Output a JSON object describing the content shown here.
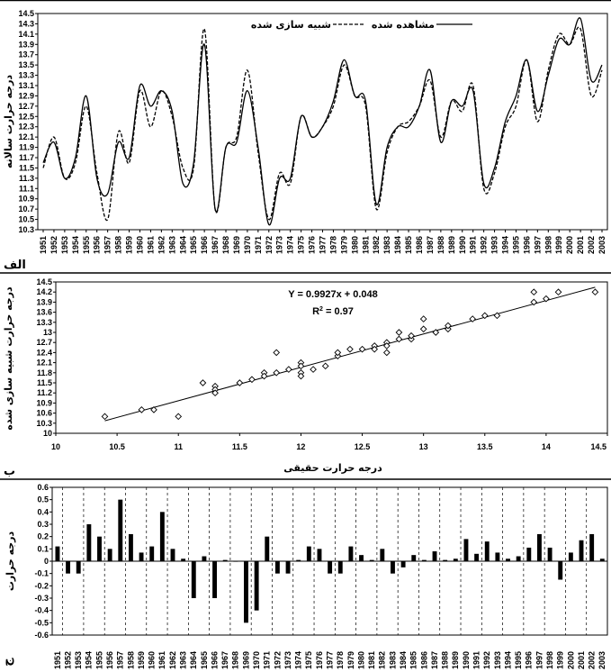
{
  "chart_data": [
    {
      "type": "line",
      "panel_label": "الف",
      "ylabel": "درجه حرارت سالانه",
      "legend": {
        "observed": "مشاهده شده",
        "simulated": "شبیه سازی شده",
        "position": "top-center"
      },
      "ylim": [
        10.3,
        14.5
      ],
      "yticks": [
        10.3,
        10.5,
        10.7,
        10.9,
        11.1,
        11.3,
        11.5,
        11.7,
        11.9,
        12.1,
        12.3,
        12.5,
        12.7,
        12.9,
        13.1,
        13.3,
        13.5,
        13.7,
        13.9,
        14.1,
        14.3,
        14.5
      ],
      "x": [
        1951,
        1952,
        1953,
        1954,
        1955,
        1956,
        1957,
        1958,
        1959,
        1960,
        1961,
        1962,
        1963,
        1964,
        1965,
        1966,
        1967,
        1968,
        1969,
        1970,
        1971,
        1972,
        1973,
        1974,
        1975,
        1976,
        1977,
        1978,
        1979,
        1980,
        1981,
        1982,
        1983,
        1984,
        1985,
        1986,
        1987,
        1988,
        1989,
        1990,
        1991,
        1992,
        1993,
        1994,
        1995,
        1996,
        1997,
        1998,
        1999,
        2000,
        2001,
        2002,
        2003
      ],
      "series": [
        {
          "name": "مشاهده شده",
          "style": "solid",
          "values": [
            11.6,
            12.0,
            11.3,
            11.7,
            12.9,
            11.3,
            11.0,
            12.0,
            11.7,
            13.1,
            12.7,
            13.0,
            12.6,
            11.2,
            11.6,
            13.9,
            10.7,
            11.9,
            12.0,
            13.0,
            11.9,
            10.4,
            11.3,
            11.3,
            12.5,
            12.1,
            12.3,
            12.8,
            13.6,
            12.9,
            12.8,
            10.8,
            11.9,
            12.3,
            12.3,
            12.7,
            13.4,
            12.0,
            12.8,
            12.7,
            13.0,
            11.2,
            11.5,
            12.4,
            12.9,
            13.6,
            12.6,
            13.3,
            14.0,
            13.9,
            14.4,
            13.2,
            13.5
          ]
        },
        {
          "name": "شبیه سازی شده",
          "style": "dashed",
          "values": [
            11.5,
            12.1,
            11.3,
            11.6,
            12.7,
            11.4,
            10.5,
            12.2,
            11.6,
            13.0,
            12.3,
            13.0,
            12.5,
            11.5,
            11.5,
            14.2,
            10.7,
            11.9,
            12.1,
            13.4,
            11.8,
            10.5,
            11.4,
            11.2,
            12.5,
            12.1,
            12.3,
            12.7,
            13.5,
            12.9,
            12.7,
            10.7,
            11.8,
            12.3,
            12.4,
            12.7,
            13.2,
            12.1,
            12.8,
            12.6,
            13.1,
            11.1,
            11.4,
            12.3,
            12.7,
            13.6,
            12.4,
            13.4,
            14.1,
            13.9,
            14.2,
            12.9,
            13.4
          ]
        }
      ]
    },
    {
      "type": "scatter",
      "panel_label": "ب",
      "xlabel": "درجه حرارت حقیقی",
      "ylabel": "درجه حرارت شبیه سازی شده",
      "xlim": [
        10,
        14.5
      ],
      "xticks": [
        10,
        10.5,
        11,
        11.5,
        12,
        12.5,
        13,
        13.5,
        14,
        14.5
      ],
      "ylim": [
        10,
        14.5
      ],
      "yticks": [
        10,
        10.3,
        10.6,
        10.9,
        11.2,
        11.5,
        11.8,
        12.1,
        12.4,
        12.7,
        13,
        13.3,
        13.6,
        13.9,
        14.2,
        14.5
      ],
      "points": [
        [
          10.4,
          10.5
        ],
        [
          10.7,
          10.7
        ],
        [
          10.8,
          10.7
        ],
        [
          11.0,
          10.5
        ],
        [
          11.2,
          11.5
        ],
        [
          11.3,
          11.4
        ],
        [
          11.3,
          11.3
        ],
        [
          11.3,
          11.2
        ],
        [
          11.5,
          11.5
        ],
        [
          11.6,
          11.6
        ],
        [
          11.7,
          11.8
        ],
        [
          11.7,
          11.7
        ],
        [
          11.8,
          12.4
        ],
        [
          11.8,
          11.8
        ],
        [
          11.9,
          11.9
        ],
        [
          12.0,
          12.1
        ],
        [
          12.0,
          12.0
        ],
        [
          12.0,
          11.8
        ],
        [
          12.0,
          11.7
        ],
        [
          12.1,
          11.9
        ],
        [
          12.2,
          12.0
        ],
        [
          12.3,
          12.3
        ],
        [
          12.3,
          12.4
        ],
        [
          12.4,
          12.5
        ],
        [
          12.5,
          12.5
        ],
        [
          12.6,
          12.6
        ],
        [
          12.6,
          12.5
        ],
        [
          12.7,
          12.7
        ],
        [
          12.7,
          12.6
        ],
        [
          12.7,
          12.4
        ],
        [
          12.8,
          12.8
        ],
        [
          12.8,
          13.0
        ],
        [
          12.9,
          12.8
        ],
        [
          12.9,
          12.9
        ],
        [
          13.0,
          13.1
        ],
        [
          13.0,
          13.4
        ],
        [
          13.1,
          13.0
        ],
        [
          13.2,
          13.1
        ],
        [
          13.2,
          13.2
        ],
        [
          13.4,
          13.4
        ],
        [
          13.5,
          13.5
        ],
        [
          13.6,
          13.5
        ],
        [
          13.9,
          13.9
        ],
        [
          13.9,
          14.2
        ],
        [
          14.0,
          14.0
        ],
        [
          14.1,
          14.2
        ],
        [
          14.4,
          14.2
        ]
      ],
      "trendline": {
        "slope": 0.9927,
        "intercept": 0.048
      },
      "equation": "Y = 0.9927x + 0.048",
      "r2_label": "R",
      "r2_sup": "2",
      "r2_value": " = 0.97"
    },
    {
      "type": "bar",
      "panel_label": "ج",
      "ylabel": "درجه حرارت",
      "ylim": [
        -0.6,
        0.6
      ],
      "yticks": [
        -0.6,
        -0.5,
        -0.4,
        -0.3,
        -0.2,
        -0.1,
        0,
        0.1,
        0.2,
        0.3,
        0.4,
        0.5,
        0.6
      ],
      "categories": [
        1951,
        1952,
        1953,
        1954,
        1955,
        1956,
        1957,
        1958,
        1959,
        1960,
        1961,
        1962,
        1963,
        1964,
        1965,
        1966,
        1967,
        1968,
        1969,
        1970,
        1971,
        1972,
        1973,
        1974,
        1975,
        1976,
        1977,
        1978,
        1979,
        1980,
        1981,
        1982,
        1983,
        1984,
        1985,
        1986,
        1987,
        1988,
        1989,
        1990,
        1991,
        1992,
        1993,
        1994,
        1995,
        1996,
        1997,
        1998,
        1999,
        2000,
        2001,
        2002,
        2003
      ],
      "values": [
        0.12,
        -0.1,
        -0.1,
        0.3,
        0.2,
        0.1,
        0.5,
        0.22,
        0.07,
        0.12,
        0.4,
        0.1,
        0.02,
        -0.3,
        0.04,
        -0.3,
        0.01,
        0.0,
        -0.5,
        -0.4,
        0.2,
        -0.1,
        -0.1,
        0.01,
        0.12,
        0.1,
        -0.1,
        -0.1,
        0.12,
        0.05,
        0.01,
        0.1,
        -0.1,
        -0.05,
        0.05,
        0.01,
        0.08,
        0.01,
        0.02,
        0.18,
        0.06,
        0.16,
        0.07,
        0.02,
        0.04,
        0.11,
        0.22,
        0.11,
        -0.15,
        0.07,
        0.17,
        0.22,
        0.02
      ]
    }
  ]
}
